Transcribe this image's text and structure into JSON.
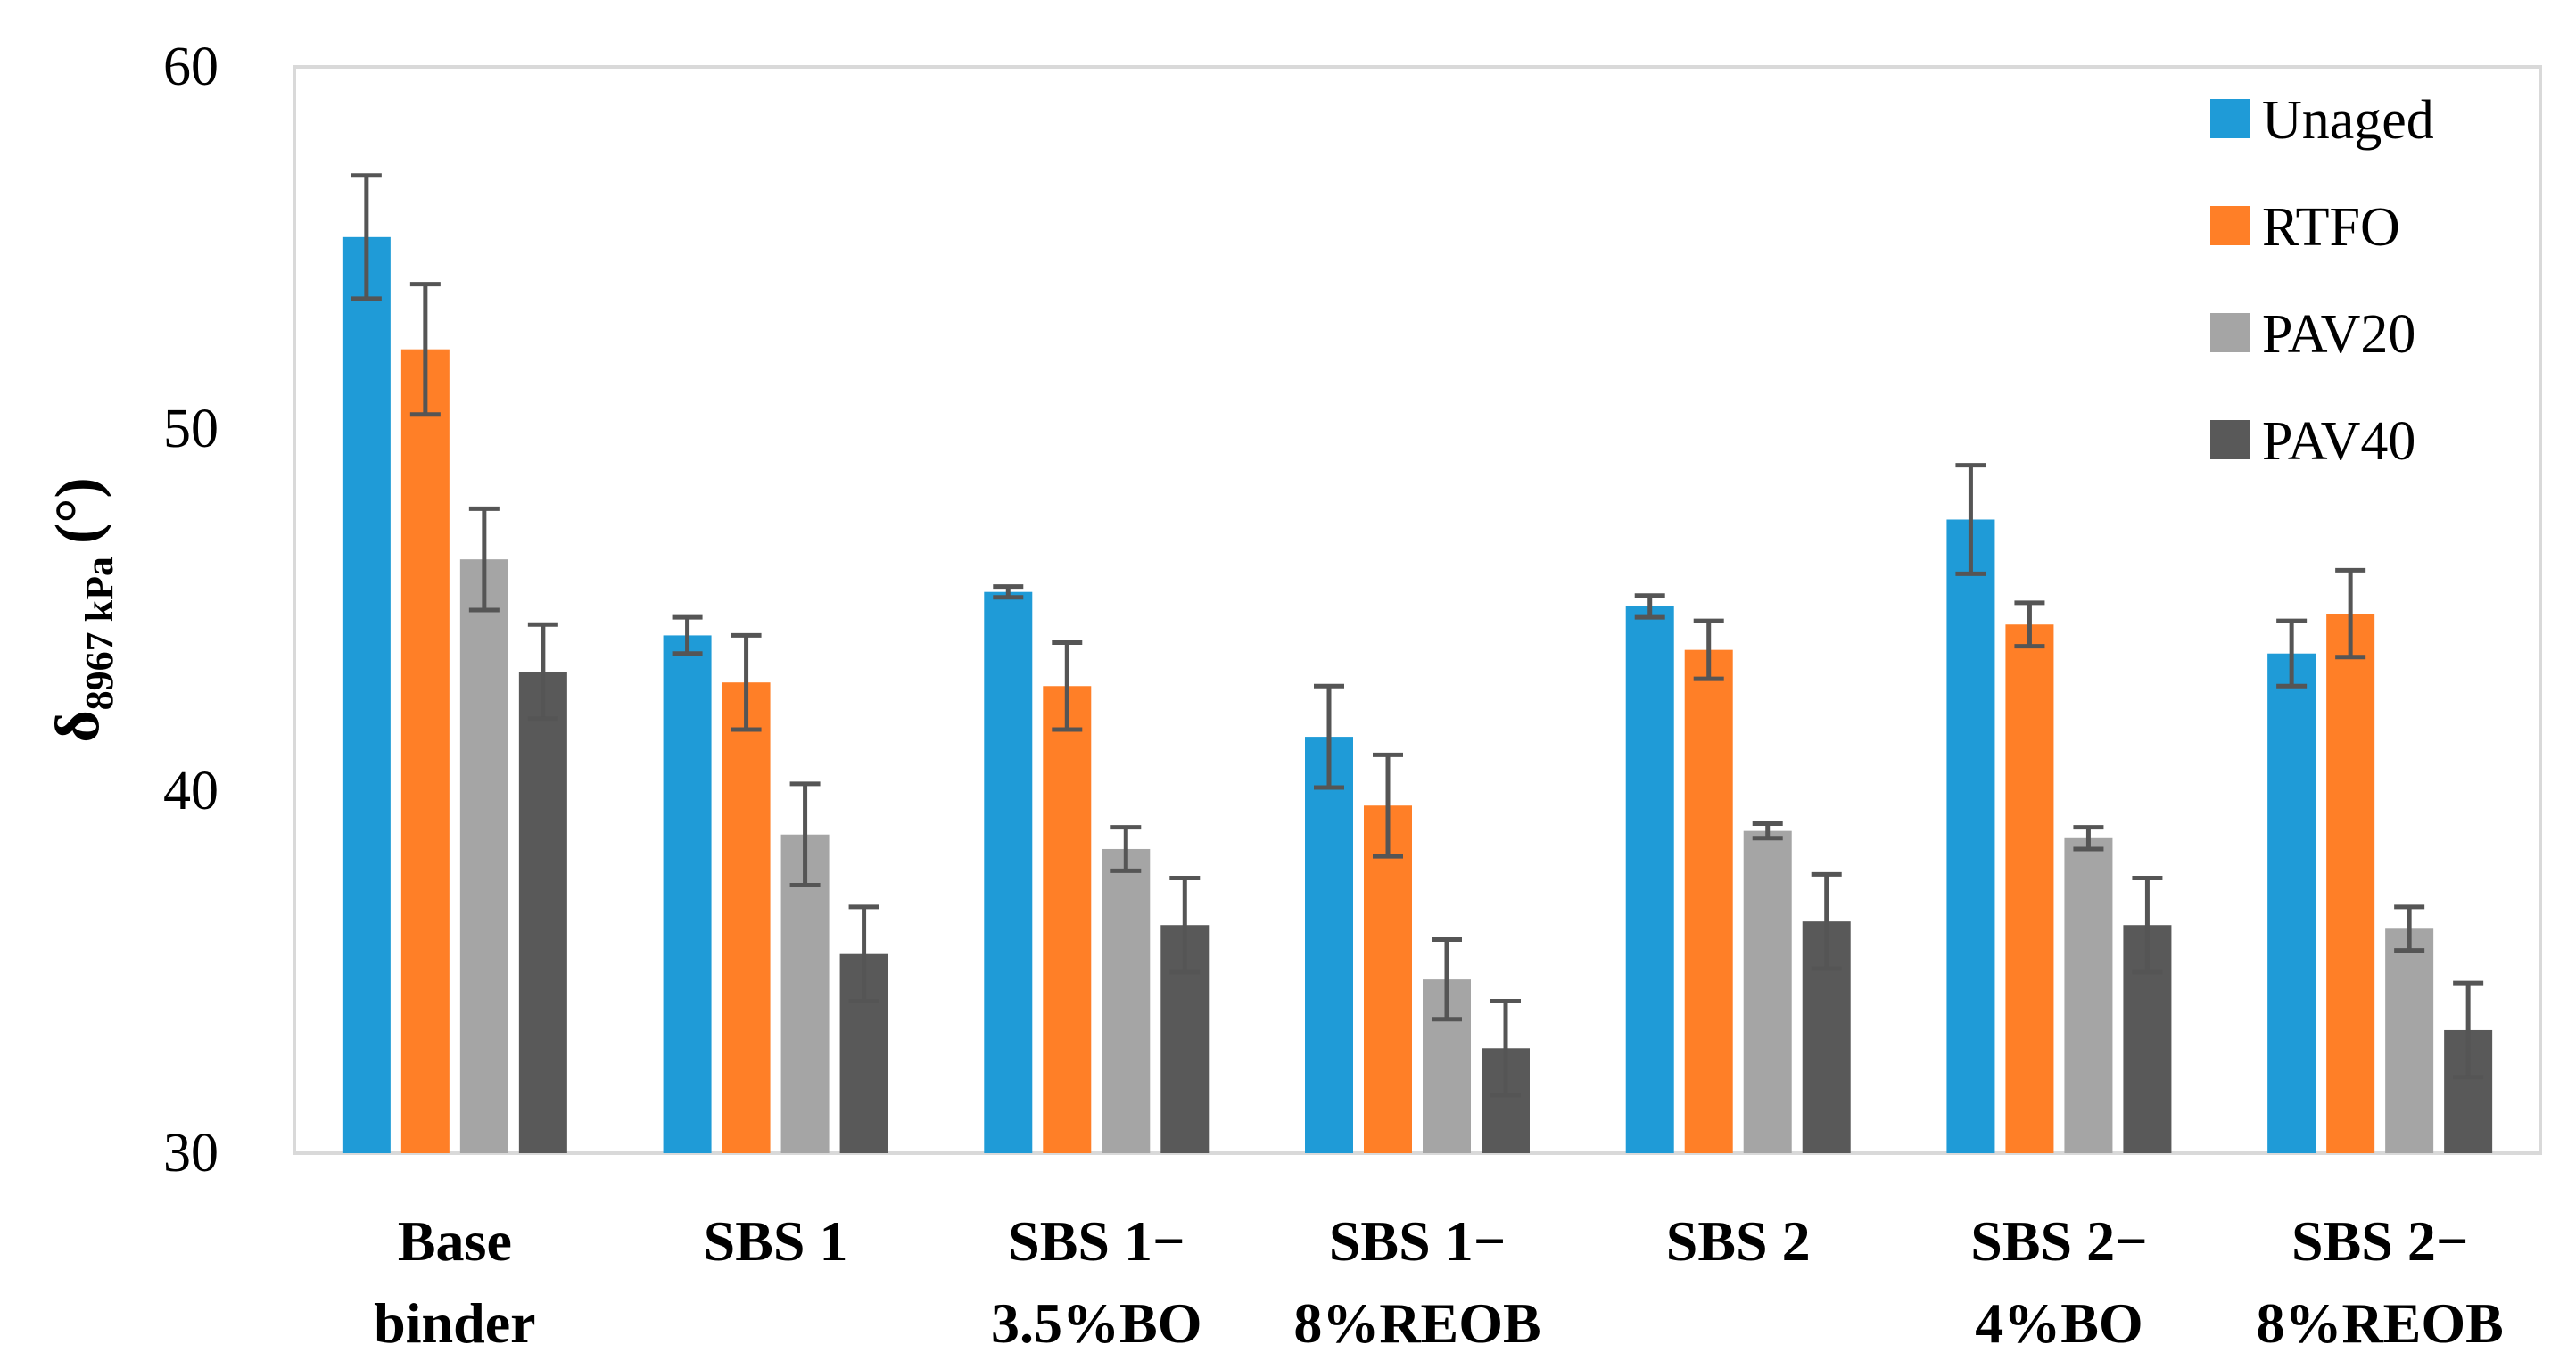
{
  "chart_data": {
    "type": "bar",
    "title": "",
    "xlabel": "",
    "ylabel": {
      "symbol": "δ",
      "subscript": "8967 kPa",
      "unit": "(°)"
    },
    "ylim": [
      30,
      60
    ],
    "yticks": [
      "30",
      "40",
      "50",
      "60"
    ],
    "grid": false,
    "legend_position": "top-right",
    "categories": [
      [
        "Base",
        "binder"
      ],
      [
        "SBS 1"
      ],
      [
        "SBS 1−",
        "3.5%BO"
      ],
      [
        "SBS 1−",
        "8%REOB"
      ],
      [
        "SBS 2"
      ],
      [
        "SBS 2−",
        "4%BO"
      ],
      [
        "SBS 2−",
        "8%REOB"
      ]
    ],
    "series": [
      {
        "name": "Unaged",
        "color": "#1F9BD7",
        "values": [
          55.3,
          44.3,
          45.5,
          41.5,
          45.1,
          47.5,
          43.8
        ],
        "errors": [
          1.7,
          0.5,
          0.15,
          1.4,
          0.3,
          1.5,
          0.9
        ]
      },
      {
        "name": "RTFO",
        "color": "#FF7F27",
        "values": [
          52.2,
          43.0,
          42.9,
          39.6,
          43.9,
          44.6,
          44.9
        ],
        "errors": [
          1.8,
          1.3,
          1.2,
          1.4,
          0.8,
          0.6,
          1.2
        ]
      },
      {
        "name": "PAV20",
        "color": "#A5A5A5",
        "values": [
          46.4,
          38.8,
          38.4,
          34.8,
          38.9,
          38.7,
          36.2
        ],
        "errors": [
          1.4,
          1.4,
          0.6,
          1.1,
          0.2,
          0.3,
          0.6
        ]
      },
      {
        "name": "PAV40",
        "color": "#595959",
        "values": [
          43.3,
          35.5,
          36.3,
          32.9,
          36.4,
          36.3,
          33.4
        ],
        "errors": [
          1.3,
          1.3,
          1.3,
          1.3,
          1.3,
          1.3,
          1.3
        ]
      }
    ]
  }
}
